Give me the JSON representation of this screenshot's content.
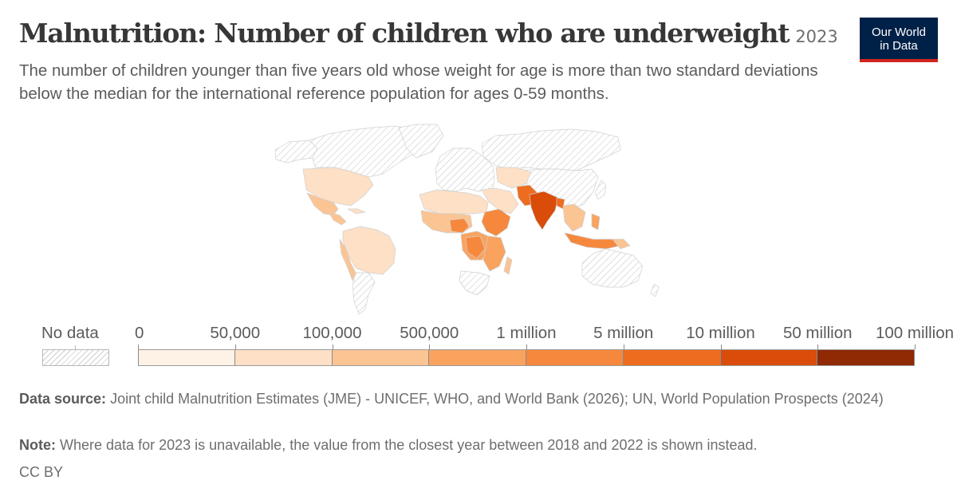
{
  "header": {
    "title": "Malnutrition: Number of children who are underweight",
    "year": "2023",
    "subtitle": "The number of children younger than five years old whose weight for age is more than two standard deviations below the median for the international reference population for ages 0-59 months."
  },
  "logo": {
    "line1": "Our World",
    "line2": "in Data",
    "color": "#002147",
    "accent": "#ce261e"
  },
  "map": {
    "type": "choropleth",
    "year": "2023",
    "no_data_label": "No data",
    "legend": {
      "tick_labels": [
        "0",
        "50,000",
        "100,000",
        "500,000",
        "1 million",
        "5 million",
        "10 million",
        "50 million",
        "100 million"
      ],
      "bins": [
        {
          "min": 0,
          "max": 50000,
          "color": "#fef1e6"
        },
        {
          "min": 50000,
          "max": 100000,
          "color": "#fde0c6"
        },
        {
          "min": 100000,
          "max": 500000,
          "color": "#fbc493"
        },
        {
          "min": 500000,
          "max": 1000000,
          "color": "#f9a35f"
        },
        {
          "min": 1000000,
          "max": 5000000,
          "color": "#f6883d"
        },
        {
          "min": 5000000,
          "max": 10000000,
          "color": "#ee6c1f"
        },
        {
          "min": 10000000,
          "max": 50000000,
          "color": "#d94c0a"
        },
        {
          "min": 50000000,
          "max": 100000000,
          "color": "#8f2a05"
        }
      ]
    }
  },
  "footer": {
    "source_label": "Data source:",
    "source_text": "Joint child Malnutrition Estimates (JME) - UNICEF, WHO, and World Bank (2026); UN, World Population Prospects (2024)",
    "note_label": "Note:",
    "note_text": "Where data for 2023 is unavailable, the value from the closest year between 2018 and 2022 is shown instead.",
    "license": "CC BY"
  }
}
